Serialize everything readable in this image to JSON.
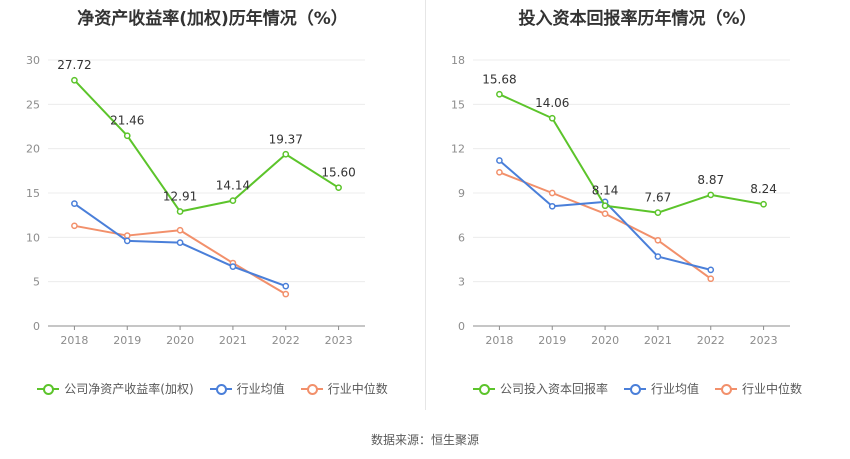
{
  "colors": {
    "company": "#5cc42b",
    "avg": "#4a7fd9",
    "median": "#f2906b"
  },
  "source_text": "数据来源：恒生聚源",
  "chart_data": [
    {
      "type": "line",
      "title": "净资产收益率(加权)历年情况（%）",
      "categories": [
        "2018",
        "2019",
        "2020",
        "2021",
        "2022",
        "2023"
      ],
      "ylim": [
        0,
        30
      ],
      "yticks": [
        0,
        5,
        10,
        15,
        20,
        25,
        30
      ],
      "grid": true,
      "legend_position": "bottom",
      "series": [
        {
          "name": "公司净资产收益率(加权)",
          "color_key": "company",
          "values": [
            27.72,
            21.46,
            12.91,
            14.14,
            19.37,
            15.6
          ],
          "labels": [
            "27.72",
            "21.46",
            "12.91",
            "14.14",
            "19.37",
            "15.60"
          ]
        },
        {
          "name": "行业均值",
          "color_key": "avg",
          "values": [
            13.8,
            9.6,
            9.4,
            6.7,
            4.5,
            null
          ]
        },
        {
          "name": "行业中位数",
          "color_key": "median",
          "values": [
            11.3,
            10.2,
            10.8,
            7.1,
            3.6,
            null
          ]
        }
      ]
    },
    {
      "type": "line",
      "title": "投入资本回报率历年情况（%）",
      "categories": [
        "2018",
        "2019",
        "2020",
        "2021",
        "2022",
        "2023"
      ],
      "ylim": [
        0,
        18
      ],
      "yticks": [
        0,
        3,
        6,
        9,
        12,
        15,
        18
      ],
      "grid": true,
      "legend_position": "bottom",
      "series": [
        {
          "name": "公司投入资本回报率",
          "color_key": "company",
          "values": [
            15.68,
            14.06,
            8.14,
            7.67,
            8.87,
            8.24
          ],
          "labels": [
            "15.68",
            "14.06",
            "8.14",
            "7.67",
            "8.87",
            "8.24"
          ]
        },
        {
          "name": "行业均值",
          "color_key": "avg",
          "values": [
            11.2,
            8.1,
            8.4,
            4.7,
            3.8,
            null
          ]
        },
        {
          "name": "行业中位数",
          "color_key": "median",
          "values": [
            10.4,
            9.0,
            7.6,
            5.8,
            3.2,
            null
          ]
        }
      ]
    }
  ]
}
